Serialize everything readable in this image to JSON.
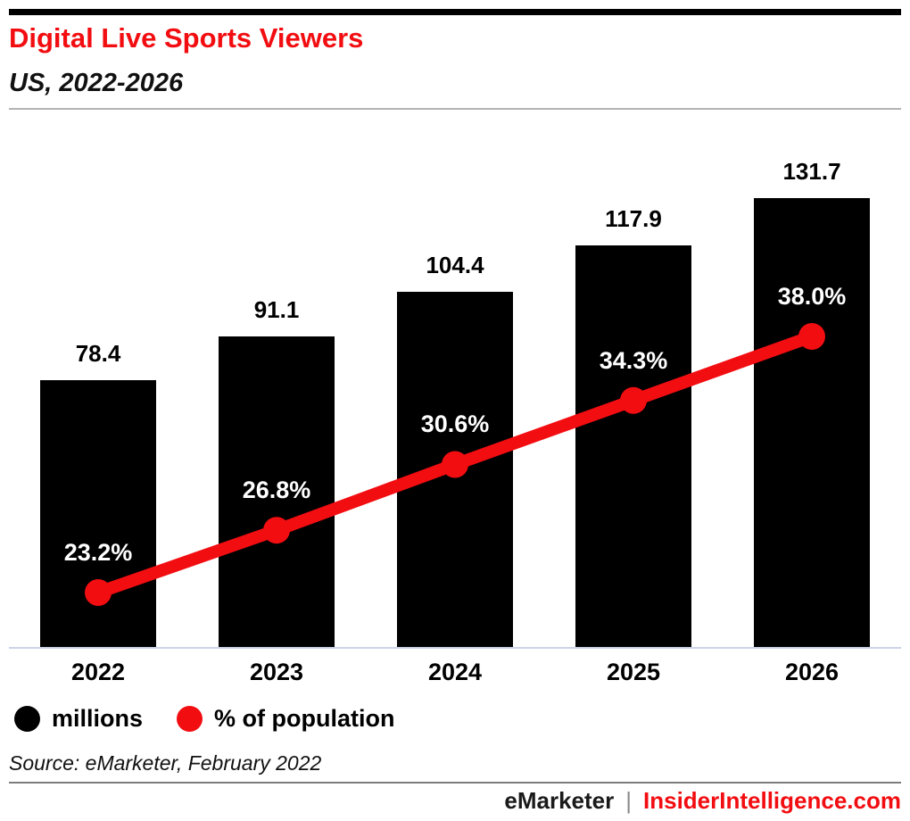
{
  "header": {
    "title": "Digital Live Sports Viewers",
    "subtitle": "US, 2022-2026"
  },
  "chart_data": {
    "type": "bar",
    "title": "Digital Live Sports Viewers",
    "subtitle": "US, 2022-2026",
    "categories": [
      "2022",
      "2023",
      "2024",
      "2025",
      "2026"
    ],
    "series": [
      {
        "name": "millions",
        "type": "bar",
        "color": "#000000",
        "values": [
          78.4,
          91.1,
          104.4,
          117.9,
          131.7
        ],
        "labels": [
          "78.4",
          "91.1",
          "104.4",
          "117.9",
          "131.7"
        ]
      },
      {
        "name": "% of population",
        "type": "line",
        "color": "#f20d11",
        "values": [
          23.2,
          26.8,
          30.6,
          34.3,
          38.0
        ],
        "labels": [
          "23.2%",
          "26.8%",
          "30.6%",
          "34.3%",
          "38.0%"
        ]
      }
    ],
    "xlabel": "",
    "ylabel": "",
    "ylim": [
      0,
      190
    ],
    "grid": false,
    "axes_hidden": true,
    "legend_position": "bottom",
    "data_labels": true
  },
  "legend": {
    "items": [
      {
        "label": "millions",
        "color": "#000000"
      },
      {
        "label": "% of population",
        "color": "#f20d11"
      }
    ]
  },
  "source": "Source: eMarketer, February 2022",
  "footer": {
    "brand": "eMarketer",
    "separator": "|",
    "site": "InsiderIntelligence.com"
  },
  "colors": {
    "accent_red": "#f20d11",
    "bar_black": "#000000",
    "baseline_gray": "#ccd4e8",
    "header_rule": "#b3b3b3",
    "footer_rule": "#7d7d7d"
  }
}
